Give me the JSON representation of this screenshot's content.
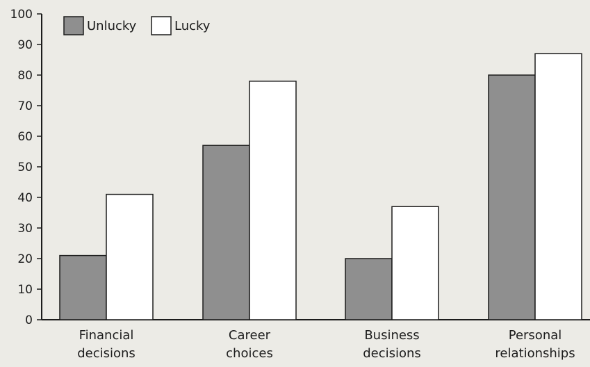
{
  "chart_data": {
    "type": "bar",
    "title": "",
    "xlabel": "",
    "ylabel": "",
    "categories": [
      [
        "Financial",
        "decisions"
      ],
      [
        "Career",
        "choices"
      ],
      [
        "Business",
        "decisions"
      ],
      [
        "Personal",
        "relationships"
      ]
    ],
    "series": [
      {
        "name": "Unlucky",
        "values": [
          21,
          57,
          20,
          80
        ],
        "color": "#8f8f8f"
      },
      {
        "name": "Lucky",
        "values": [
          41,
          78,
          37,
          87
        ],
        "color": "#ffffff"
      }
    ],
    "ylim": [
      0,
      100
    ],
    "yticks": [
      "0",
      "10",
      "20",
      "30",
      "40",
      "50",
      "60",
      "70",
      "80",
      "90",
      "100"
    ],
    "grid": false,
    "legend": "top-left"
  }
}
